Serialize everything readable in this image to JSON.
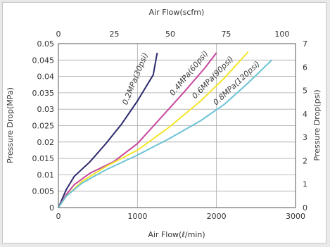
{
  "chart_data": {
    "type": "line",
    "x_bottom": {
      "label": "Air Flow(ℓ/min)",
      "lim": [
        0,
        3000
      ],
      "ticks": [
        "0",
        "1000",
        "2000",
        "3000"
      ]
    },
    "x_top": {
      "label": "Air Flow(scfm)",
      "lim": [
        0,
        106
      ],
      "ticks": [
        "0",
        "25",
        "50",
        "75",
        "100"
      ]
    },
    "y_left": {
      "label": "Pressure Drop(MPa)",
      "lim": [
        0,
        0.05
      ],
      "ticks": [
        "0",
        "0.005",
        "0.01",
        "0.015",
        "0.02",
        "0.025",
        "0.03",
        "0.035",
        "0.04",
        "0.045",
        "0.05"
      ]
    },
    "y_right": {
      "label": "Pressure Drop(psi)",
      "lim": [
        0,
        7
      ],
      "ticks": [
        "0",
        "1",
        "2",
        "3",
        "4",
        "5",
        "6",
        "7"
      ]
    },
    "grid": true,
    "series": [
      {
        "name": "0.2MPa(30psi)",
        "color": "#2b2a6e",
        "x": [
          0,
          100,
          200,
          400,
          600,
          800,
          1000,
          1200,
          1250
        ],
        "y": [
          0,
          0.0055,
          0.0095,
          0.014,
          0.0195,
          0.0255,
          0.0325,
          0.0405,
          0.0472
        ]
      },
      {
        "name": "0.4MPa(60psi)",
        "color": "#c8479e",
        "x": [
          0,
          100,
          200,
          400,
          700,
          1000,
          1300,
          1600,
          1850,
          2000
        ],
        "y": [
          0,
          0.004,
          0.007,
          0.0105,
          0.014,
          0.0195,
          0.0275,
          0.0355,
          0.0425,
          0.0472
        ]
      },
      {
        "name": "0.6MPa(90psi)",
        "color": "#f2e629",
        "x": [
          0,
          100,
          300,
          600,
          1000,
          1400,
          1800,
          2100,
          2400
        ],
        "y": [
          0,
          0.0035,
          0.008,
          0.0125,
          0.0175,
          0.0245,
          0.0325,
          0.0395,
          0.0475
        ]
      },
      {
        "name": "0.8MPa(120psi)",
        "color": "#6cc3d6",
        "x": [
          0,
          100,
          300,
          600,
          1000,
          1400,
          1800,
          2100,
          2400,
          2700
        ],
        "y": [
          0,
          0.0035,
          0.0075,
          0.0115,
          0.016,
          0.021,
          0.0265,
          0.0315,
          0.038,
          0.045
        ]
      }
    ]
  }
}
